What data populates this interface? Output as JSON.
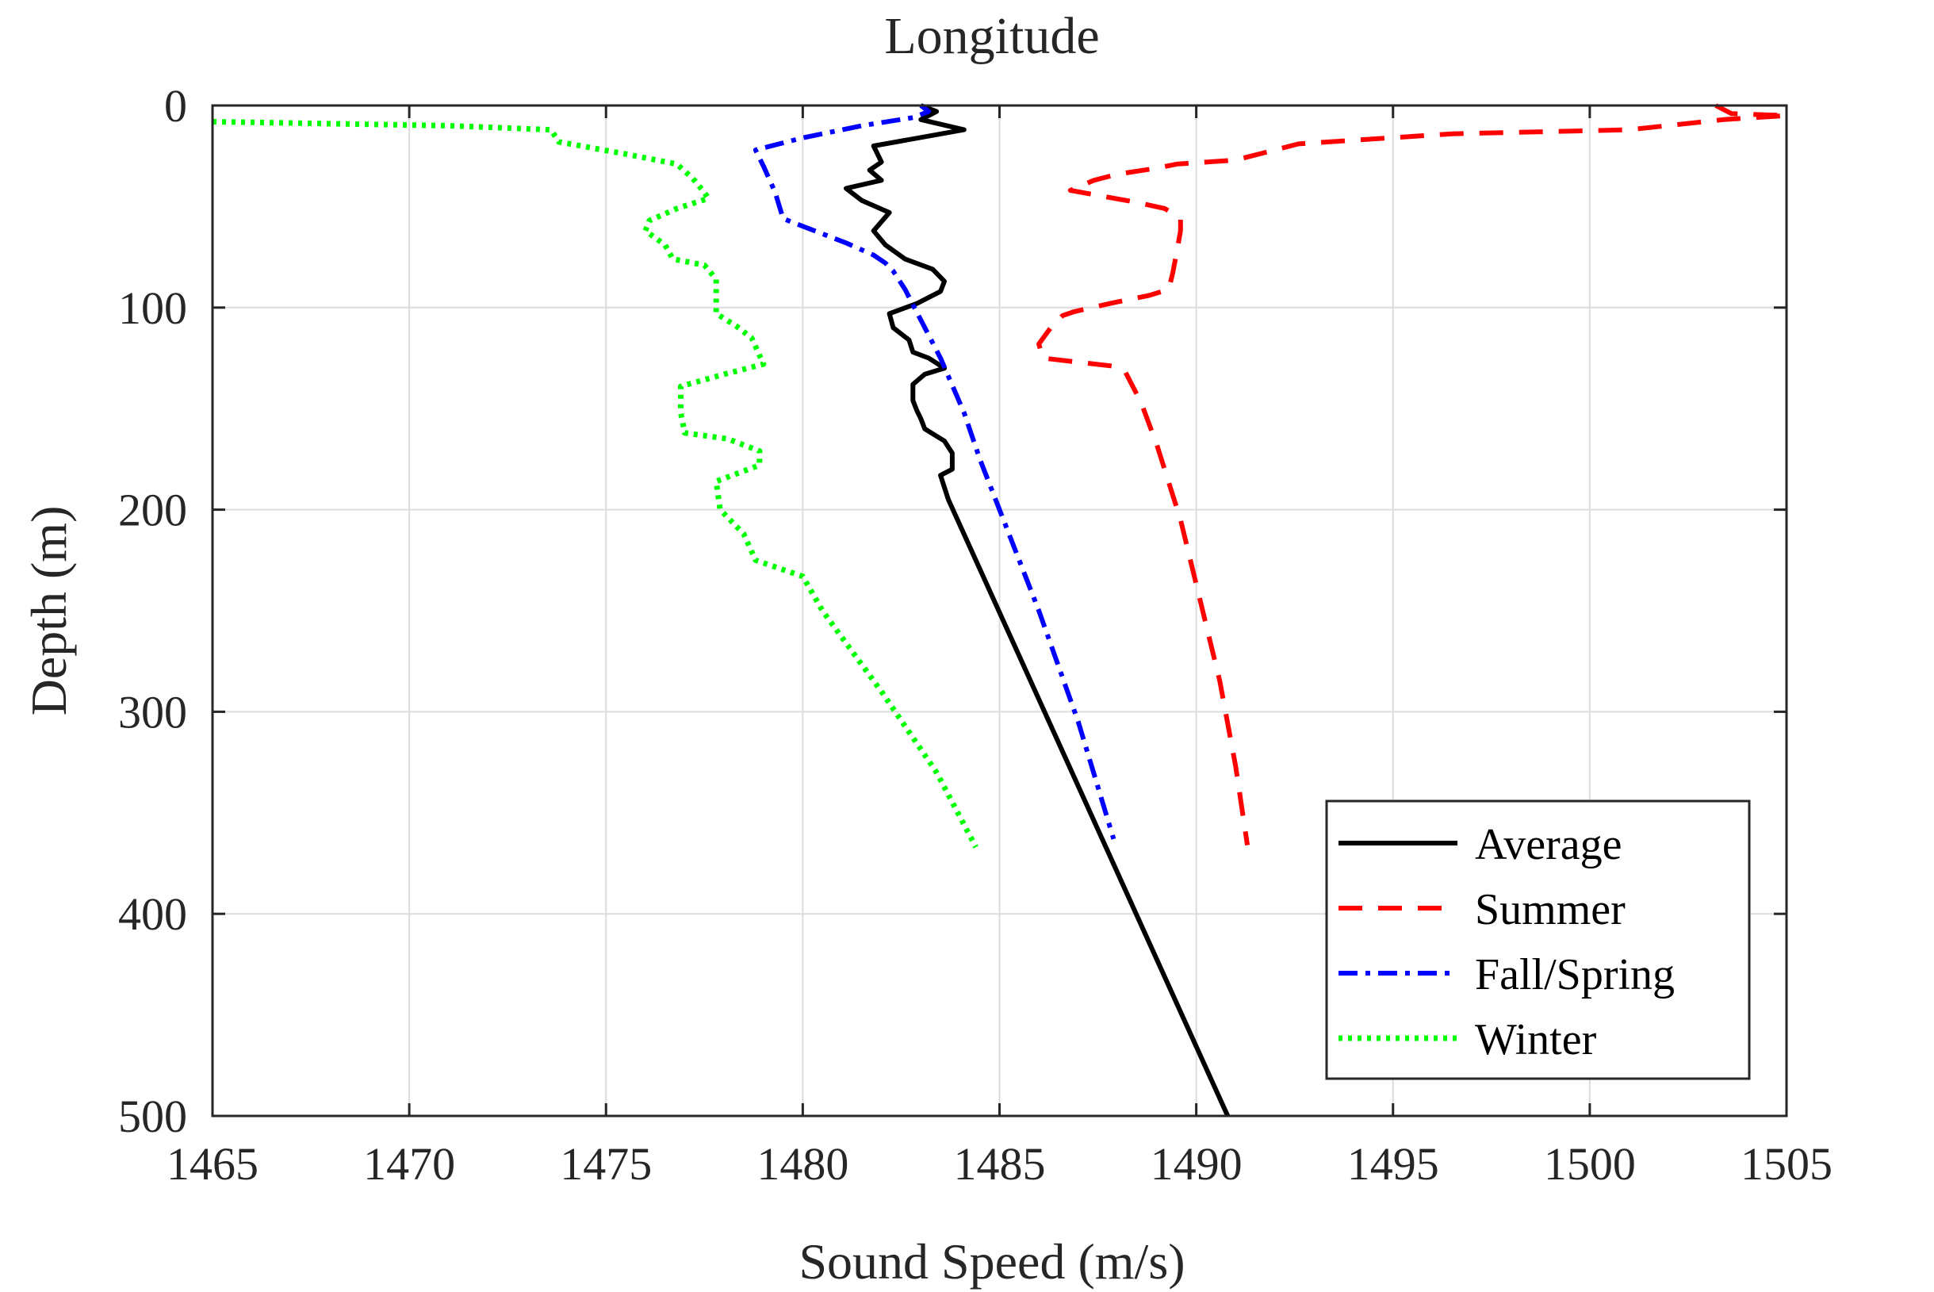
{
  "chart_data": {
    "type": "line",
    "title": "Longitude",
    "xlabel": "Sound Speed (m/s)",
    "ylabel": "Depth (m)",
    "xlim": [
      1465,
      1505
    ],
    "ylim": [
      0,
      500
    ],
    "y_axis_reversed": true,
    "grid": true,
    "legend_position": "bottom-right",
    "x_ticks": [
      1465,
      1470,
      1475,
      1480,
      1485,
      1490,
      1495,
      1500,
      1505
    ],
    "y_ticks": [
      0,
      100,
      200,
      300,
      400,
      500
    ],
    "series": [
      {
        "name": "Average",
        "color": "#000000",
        "style": "solid",
        "points": [
          [
            1483.0,
            0
          ],
          [
            1483.4,
            3
          ],
          [
            1483.0,
            7
          ],
          [
            1484.1,
            12
          ],
          [
            1481.8,
            20
          ],
          [
            1482.0,
            28
          ],
          [
            1481.7,
            32
          ],
          [
            1482.0,
            37
          ],
          [
            1481.1,
            41
          ],
          [
            1481.5,
            47
          ],
          [
            1482.2,
            53
          ],
          [
            1481.8,
            62
          ],
          [
            1482.1,
            69
          ],
          [
            1482.6,
            76
          ],
          [
            1483.3,
            81
          ],
          [
            1483.6,
            87
          ],
          [
            1483.5,
            92
          ],
          [
            1482.9,
            98
          ],
          [
            1482.2,
            103
          ],
          [
            1482.3,
            110
          ],
          [
            1482.7,
            116
          ],
          [
            1482.8,
            122
          ],
          [
            1483.2,
            125
          ],
          [
            1483.6,
            130
          ],
          [
            1483.1,
            133
          ],
          [
            1482.8,
            138
          ],
          [
            1482.8,
            146
          ],
          [
            1482.9,
            151
          ],
          [
            1483.0,
            155
          ],
          [
            1483.1,
            160
          ],
          [
            1483.6,
            166
          ],
          [
            1483.8,
            172
          ],
          [
            1483.8,
            180
          ],
          [
            1483.5,
            183
          ],
          [
            1483.6,
            189
          ],
          [
            1483.7,
            195
          ],
          [
            1490.8,
            500
          ]
        ]
      },
      {
        "name": "Summer",
        "color": "#ff0000",
        "style": "dashed",
        "points": [
          [
            1503.2,
            0
          ],
          [
            1503.6,
            4
          ],
          [
            1505.0,
            5
          ],
          [
            1503.4,
            7
          ],
          [
            1501.0,
            12
          ],
          [
            1496.5,
            14
          ],
          [
            1492.6,
            19
          ],
          [
            1491.0,
            27
          ],
          [
            1489.5,
            29
          ],
          [
            1489.0,
            31
          ],
          [
            1488.0,
            34
          ],
          [
            1487.4,
            37
          ],
          [
            1486.8,
            42
          ],
          [
            1488.5,
            48
          ],
          [
            1489.2,
            51
          ],
          [
            1489.6,
            56
          ],
          [
            1489.6,
            62
          ],
          [
            1489.5,
            73
          ],
          [
            1489.4,
            83
          ],
          [
            1489.3,
            91
          ],
          [
            1488.8,
            94
          ],
          [
            1488.3,
            96
          ],
          [
            1487.8,
            98
          ],
          [
            1486.9,
            102
          ],
          [
            1486.6,
            104
          ],
          [
            1486.3,
            110
          ],
          [
            1486.0,
            118
          ],
          [
            1486.1,
            125
          ],
          [
            1487.0,
            127
          ],
          [
            1487.9,
            129
          ],
          [
            1488.2,
            132
          ],
          [
            1488.6,
            147
          ],
          [
            1489.0,
            168
          ],
          [
            1489.6,
            205
          ],
          [
            1490.6,
            285
          ],
          [
            1491.0,
            327
          ],
          [
            1491.3,
            366
          ]
        ]
      },
      {
        "name": "Fall/Spring",
        "color": "#0000ff",
        "style": "dash-dot",
        "points": [
          [
            1483.0,
            0
          ],
          [
            1483.2,
            3
          ],
          [
            1482.8,
            6
          ],
          [
            1481.5,
            10
          ],
          [
            1480.0,
            16
          ],
          [
            1478.8,
            22
          ],
          [
            1479.0,
            30
          ],
          [
            1479.3,
            43
          ],
          [
            1479.5,
            56
          ],
          [
            1480.3,
            62
          ],
          [
            1481.1,
            68
          ],
          [
            1481.8,
            74
          ],
          [
            1482.1,
            78
          ],
          [
            1482.3,
            82
          ],
          [
            1482.6,
            91
          ],
          [
            1483.5,
            125
          ],
          [
            1484.1,
            152
          ],
          [
            1484.5,
            175
          ],
          [
            1485.0,
            200
          ],
          [
            1486.0,
            250
          ],
          [
            1487.0,
            305
          ],
          [
            1487.9,
            363
          ]
        ]
      },
      {
        "name": "Winter",
        "color": "#00ff00",
        "style": "dotted",
        "points": [
          [
            1465.0,
            8
          ],
          [
            1471.0,
            10
          ],
          [
            1473.6,
            12
          ],
          [
            1473.7,
            15
          ],
          [
            1473.8,
            18
          ],
          [
            1475.5,
            24
          ],
          [
            1476.8,
            29
          ],
          [
            1477.2,
            36
          ],
          [
            1477.5,
            43
          ],
          [
            1477.6,
            46
          ],
          [
            1476.8,
            51
          ],
          [
            1476.1,
            57
          ],
          [
            1476.0,
            62
          ],
          [
            1476.5,
            69
          ],
          [
            1476.7,
            76
          ],
          [
            1477.5,
            79
          ],
          [
            1477.8,
            86
          ],
          [
            1477.8,
            94
          ],
          [
            1477.8,
            103
          ],
          [
            1478.3,
            109
          ],
          [
            1478.7,
            115
          ],
          [
            1479.0,
            128
          ],
          [
            1478.0,
            133
          ],
          [
            1476.9,
            139
          ],
          [
            1476.9,
            152
          ],
          [
            1477.0,
            162
          ],
          [
            1478.1,
            165
          ],
          [
            1478.9,
            171
          ],
          [
            1478.9,
            178
          ],
          [
            1477.8,
            186
          ],
          [
            1477.9,
            200
          ],
          [
            1478.5,
            212
          ],
          [
            1478.8,
            225
          ],
          [
            1480.0,
            233
          ],
          [
            1480.5,
            250
          ],
          [
            1482.0,
            290
          ],
          [
            1483.4,
            330
          ],
          [
            1484.4,
            367
          ]
        ]
      }
    ]
  }
}
